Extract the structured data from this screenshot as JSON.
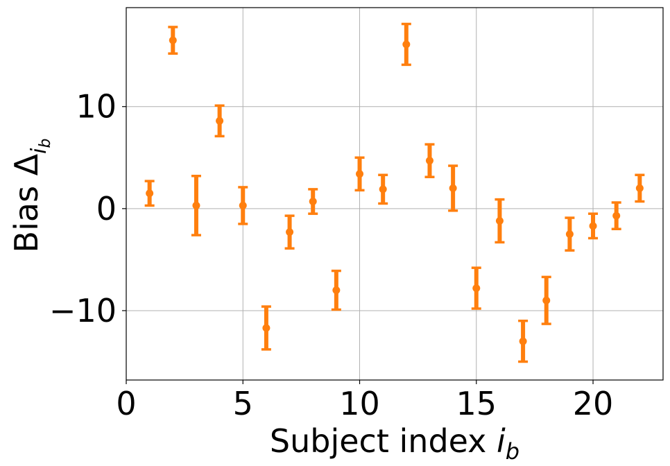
{
  "chart_data": {
    "type": "scatter",
    "title": "",
    "xlabel": "Subject index",
    "xlabel_var": "i",
    "xlabel_sub": "b",
    "ylabel": "Bias",
    "ylabel_var": "Δ",
    "ylabel_sub_var": "i",
    "ylabel_sub_sub": "b",
    "xlim": [
      0,
      23
    ],
    "ylim": [
      -16.8,
      19.7
    ],
    "xticks": [
      0,
      5,
      10,
      15,
      20
    ],
    "yticks": [
      -10,
      0,
      10
    ],
    "xtick_labels": [
      "0",
      "5",
      "10",
      "15",
      "20"
    ],
    "ytick_labels": [
      "−10",
      "0",
      "10"
    ],
    "grid": true,
    "marker_color": "#ff7f0e",
    "points": [
      {
        "x": 1,
        "y": 1.5,
        "err": 1.2
      },
      {
        "x": 2,
        "y": 16.5,
        "err": 1.3
      },
      {
        "x": 3,
        "y": 0.3,
        "err": 2.9
      },
      {
        "x": 4,
        "y": 8.6,
        "err": 1.5
      },
      {
        "x": 5,
        "y": 0.3,
        "err": 1.8
      },
      {
        "x": 6,
        "y": -11.7,
        "err": 2.1
      },
      {
        "x": 7,
        "y": -2.3,
        "err": 1.6
      },
      {
        "x": 8,
        "y": 0.7,
        "err": 1.2
      },
      {
        "x": 9,
        "y": -8.0,
        "err": 1.9
      },
      {
        "x": 10,
        "y": 3.4,
        "err": 1.6
      },
      {
        "x": 11,
        "y": 1.9,
        "err": 1.4
      },
      {
        "x": 12,
        "y": 16.1,
        "err": 2.0
      },
      {
        "x": 13,
        "y": 4.7,
        "err": 1.6
      },
      {
        "x": 14,
        "y": 2.0,
        "err": 2.2
      },
      {
        "x": 15,
        "y": -7.8,
        "err": 2.0
      },
      {
        "x": 16,
        "y": -1.2,
        "err": 2.1
      },
      {
        "x": 17,
        "y": -13.0,
        "err": 2.0
      },
      {
        "x": 18,
        "y": -9.0,
        "err": 2.3
      },
      {
        "x": 19,
        "y": -2.5,
        "err": 1.6
      },
      {
        "x": 20,
        "y": -1.7,
        "err": 1.2
      },
      {
        "x": 21,
        "y": -0.7,
        "err": 1.3
      },
      {
        "x": 22,
        "y": 2.0,
        "err": 1.3
      }
    ]
  }
}
